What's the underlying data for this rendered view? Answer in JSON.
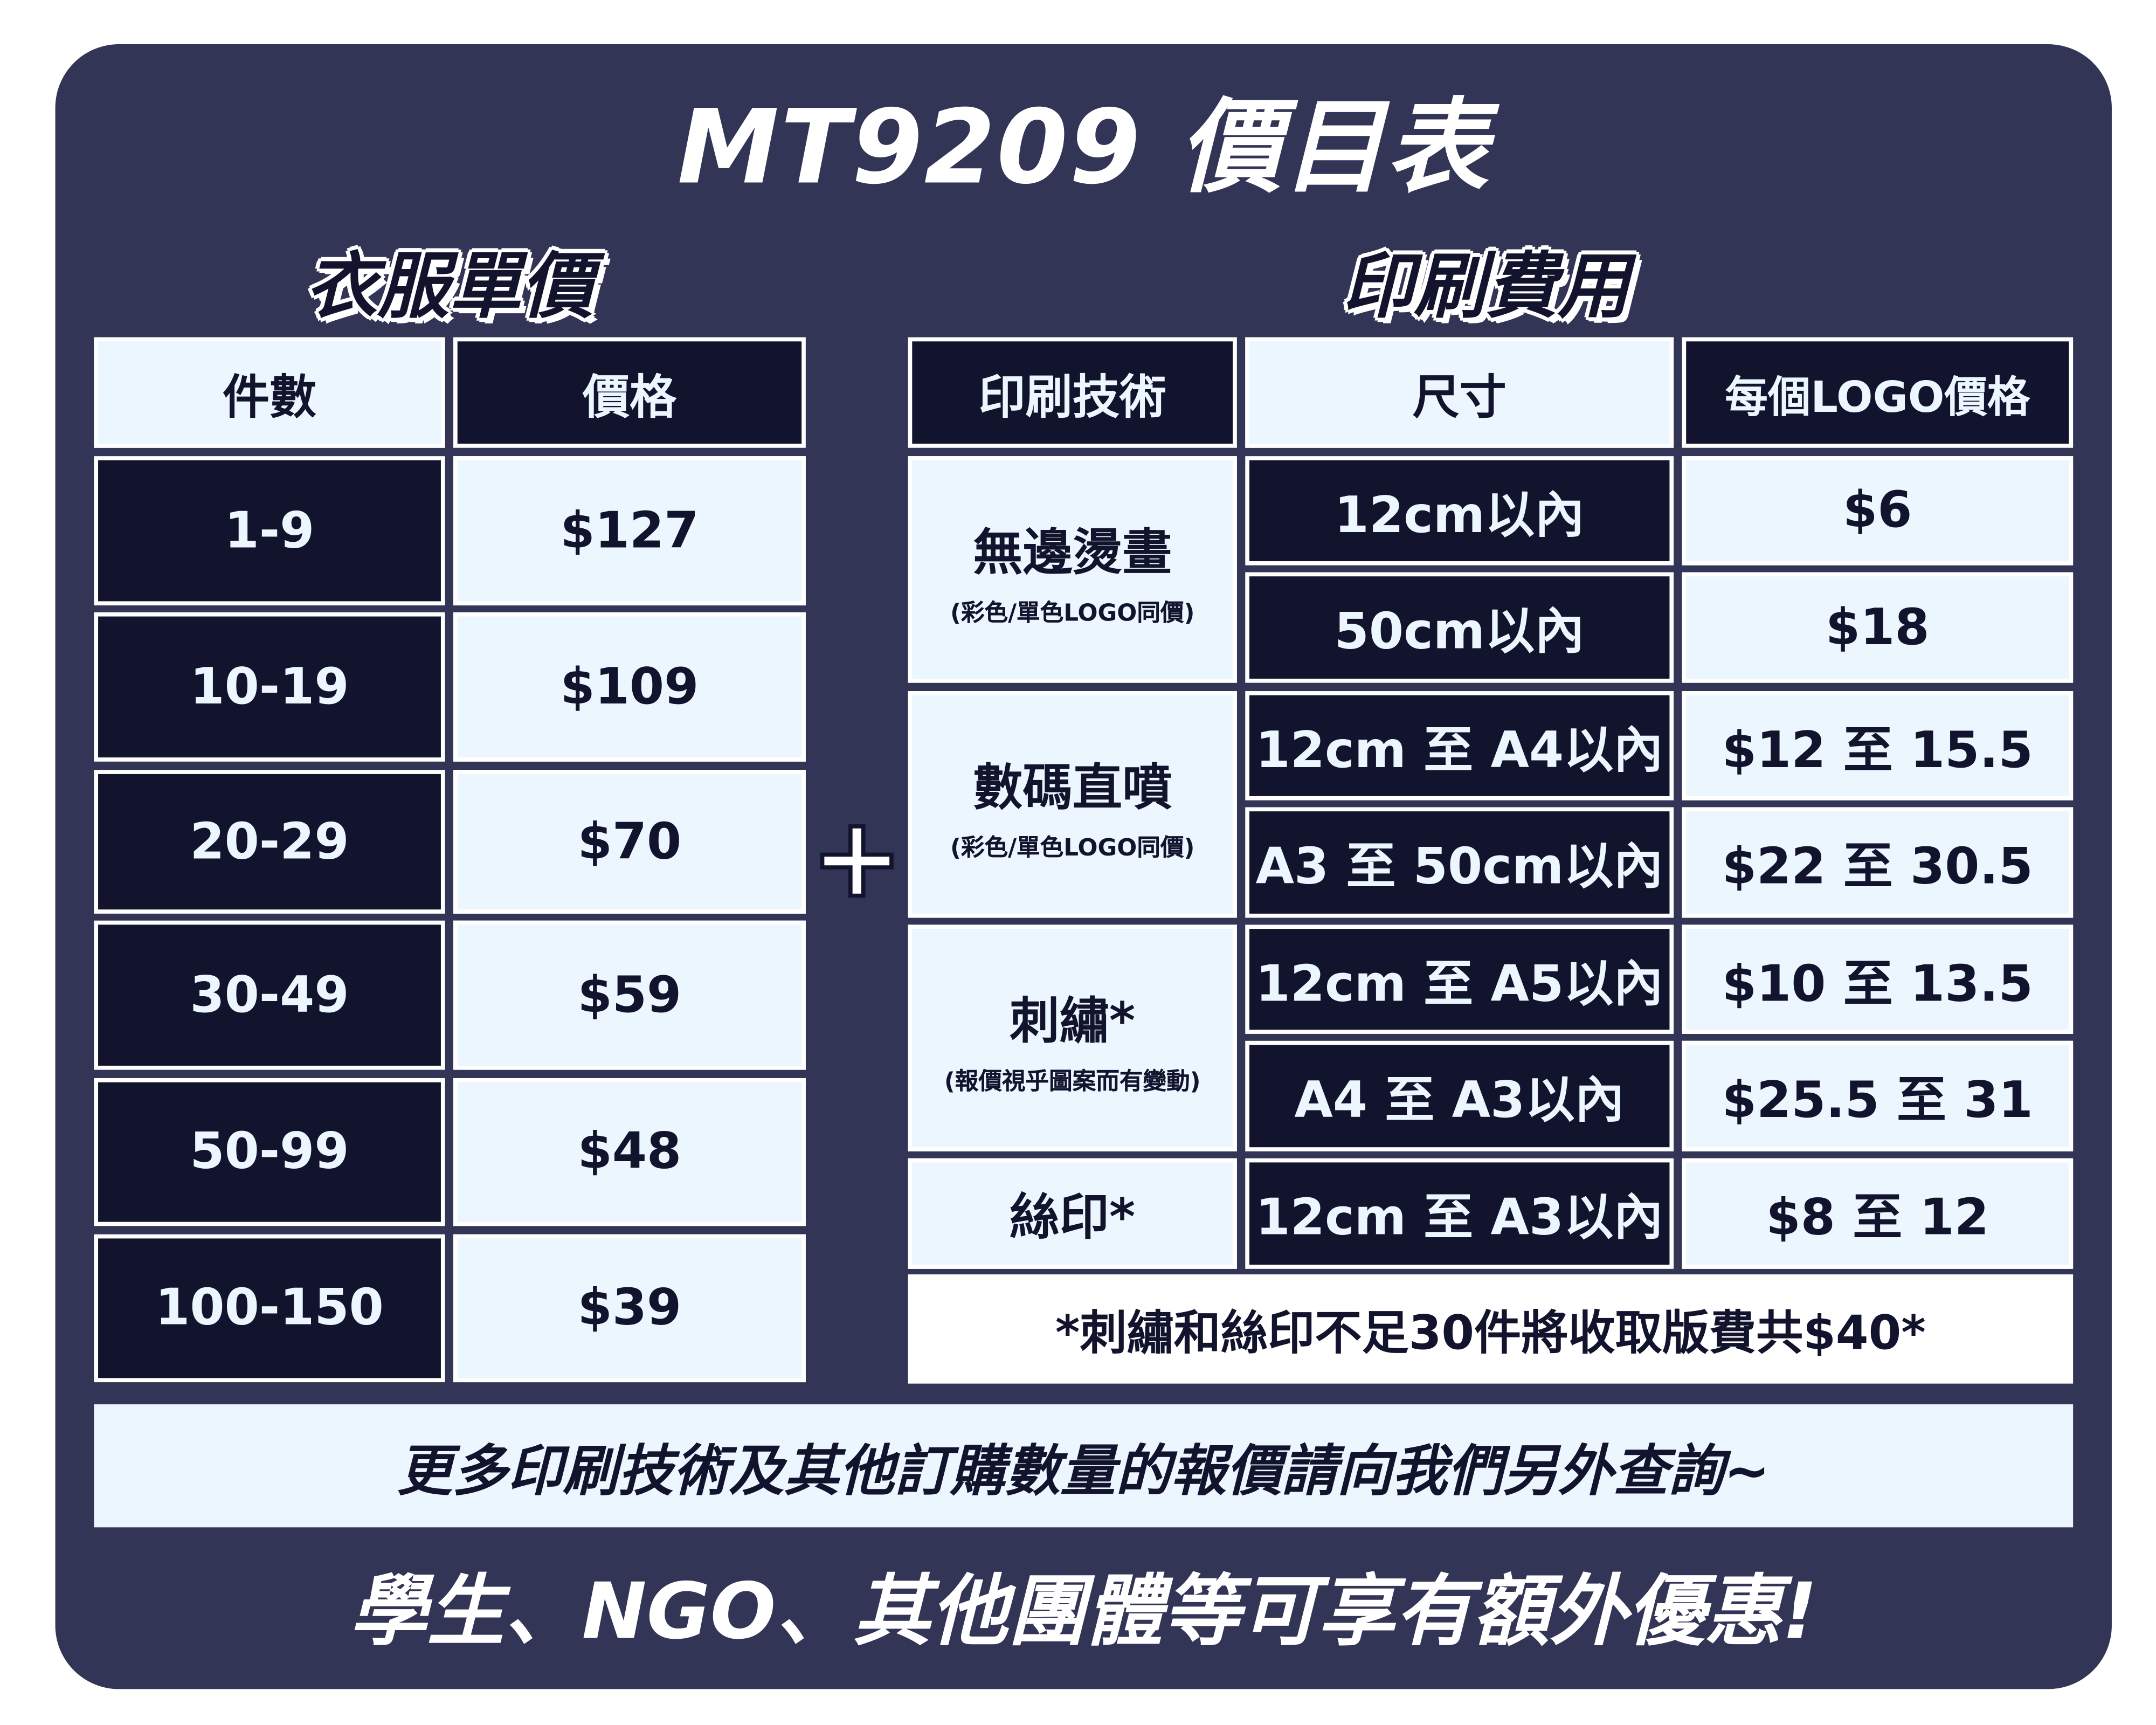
{
  "title": "MT9209 價目表",
  "colors": {
    "background": "#323556",
    "dark_cell": "#12142e",
    "light_cell": "#ebf6fe",
    "border": "#ffffff"
  },
  "clothing": {
    "heading": "衣服單價",
    "headers": [
      "件數",
      "價格"
    ],
    "rows": [
      {
        "qty": "1-9",
        "price": "$127"
      },
      {
        "qty": "10-19",
        "price": "$109"
      },
      {
        "qty": "20-29",
        "price": "$70"
      },
      {
        "qty": "30-49",
        "price": "$59"
      },
      {
        "qty": "50-99",
        "price": "$48"
      },
      {
        "qty": "100-150",
        "price": "$39"
      }
    ]
  },
  "plus_icon": "plus-icon",
  "printing": {
    "heading": "印刷費用",
    "headers": [
      "印刷技術",
      "尺寸",
      "每個LOGO價格"
    ],
    "groups": [
      {
        "technique": "無邊燙畫",
        "note": "(彩色/單色LOGO同價)",
        "rows": [
          {
            "size": "12cm以內",
            "price": "$6"
          },
          {
            "size": "50cm以內",
            "price": "$18"
          }
        ]
      },
      {
        "technique": "數碼直噴",
        "note": "(彩色/單色LOGO同價)",
        "rows": [
          {
            "size": "12cm 至 A4以內",
            "price": "$12 至 15.5"
          },
          {
            "size": "A3 至 50cm以內",
            "price": "$22 至 30.5"
          }
        ]
      },
      {
        "technique": "刺繡*",
        "note": "(報價視乎圖案而有變動)",
        "rows": [
          {
            "size": "12cm 至 A5以內",
            "price": "$10 至 13.5"
          },
          {
            "size": "A4 至 A3以內",
            "price": "$25.5 至 31"
          }
        ]
      },
      {
        "technique": "絲印*",
        "rows": [
          {
            "size": "12cm 至 A3以內",
            "price": "$8 至 12"
          }
        ]
      }
    ],
    "footnote": "*刺繡和絲印不足30件將收取版費共$40*"
  },
  "banner": "更多印刷技術及其他訂購數量的報價請向我們另外查詢~",
  "footer": "學生、NGO、其他團體等可享有額外優惠!"
}
